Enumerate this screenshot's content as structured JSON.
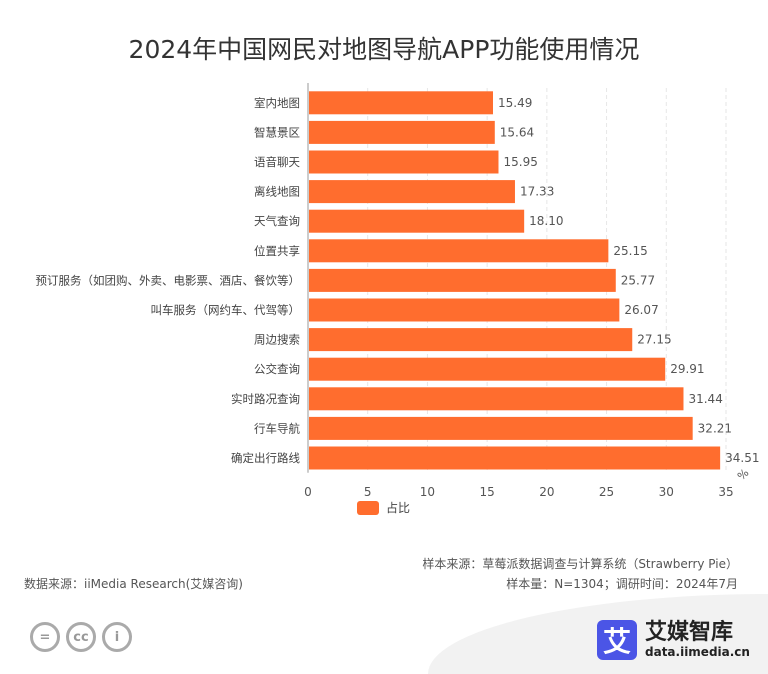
{
  "chart_data": {
    "type": "bar",
    "orientation": "horizontal",
    "title": "2024年中国网民对地图导航APP功能使用情况",
    "categories": [
      "室内地图",
      "智慧景区",
      "语音聊天",
      "离线地图",
      "天气查询",
      "位置共享",
      "预订服务（如团购、外卖、电影票、酒店、餐饮等）",
      "叫车服务（网约车、代驾等）",
      "周边搜索",
      "公交查询",
      "实时路况查询",
      "行车导航",
      "确定出行路线"
    ],
    "series": [
      {
        "name": "占比",
        "values": [
          15.49,
          15.64,
          15.95,
          17.33,
          18.1,
          25.15,
          25.77,
          26.07,
          27.15,
          29.91,
          31.44,
          32.21,
          34.51
        ],
        "color": "#ff6d2e"
      }
    ],
    "xlim": [
      0,
      35
    ],
    "xticks": [
      "0",
      "5",
      "10",
      "15",
      "20",
      "25",
      "30",
      "35"
    ],
    "xunit": "%",
    "grid": "vertical dashed",
    "legend": "bottom"
  },
  "footer": {
    "sample_source": "样本来源：草莓派数据调查与计算系统（Strawberry Pie）",
    "data_source": "数据来源：iiMedia Research(艾媒咨询)",
    "sample_size": "样本量：N=1304；调研时间：2024年7月"
  },
  "logo": {
    "mark": "艾",
    "name": "艾媒智库",
    "url": "data.iimedia.cn"
  },
  "license_icons": [
    "cc-nd-icon",
    "cc-icon",
    "cc-by-icon"
  ]
}
